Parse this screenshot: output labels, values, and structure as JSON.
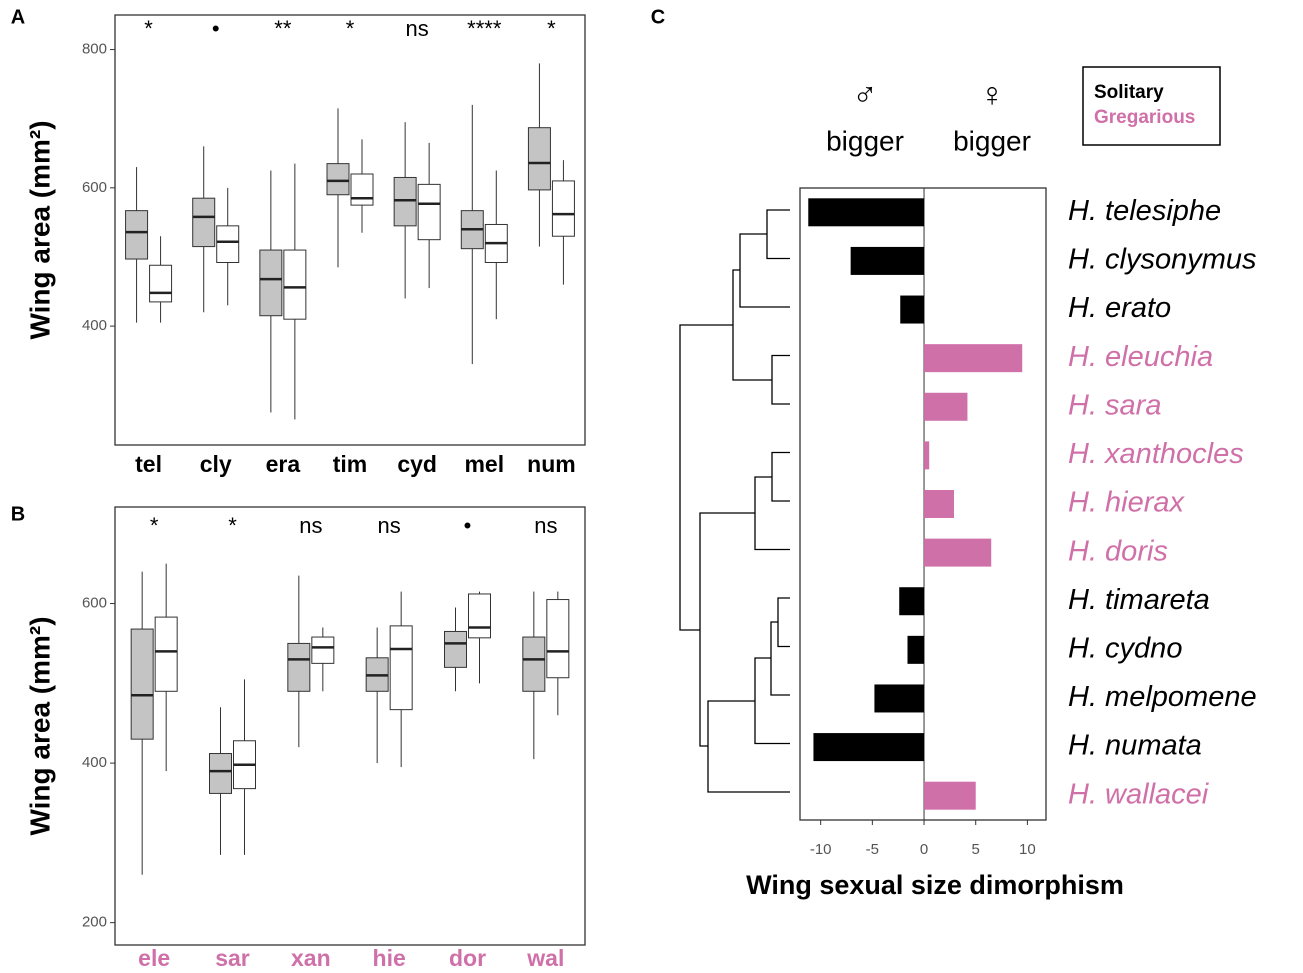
{
  "chart_data": [
    {
      "type": "box",
      "panel": "A",
      "y_label": "Wing area (mm²)",
      "categories": [
        "tel",
        "cly",
        "era",
        "tim",
        "cyd",
        "mel",
        "num"
      ],
      "category_color": "#000000",
      "annotations": [
        "*",
        "•",
        "**",
        "*",
        "ns",
        "****",
        "*"
      ],
      "ylim": [
        228,
        850
      ],
      "yticks": [
        400,
        600,
        800
      ],
      "series": [
        {
          "color": "#c4c4c4",
          "values": [
            {
              "min": 405,
              "q1": 497,
              "median": 536,
              "q3": 567,
              "max": 630
            },
            {
              "min": 420,
              "q1": 515,
              "median": 558,
              "q3": 585,
              "max": 660
            },
            {
              "min": 275,
              "q1": 415,
              "median": 468,
              "q3": 510,
              "max": 625
            },
            {
              "min": 485,
              "q1": 590,
              "median": 610,
              "q3": 635,
              "max": 715
            },
            {
              "min": 440,
              "q1": 545,
              "median": 582,
              "q3": 615,
              "max": 695
            },
            {
              "min": 345,
              "q1": 512,
              "median": 540,
              "q3": 567,
              "max": 720
            },
            {
              "min": 515,
              "q1": 597,
              "median": 636,
              "q3": 687,
              "max": 780
            }
          ]
        },
        {
          "color": "#ffffff",
          "values": [
            {
              "min": 405,
              "q1": 435,
              "median": 448,
              "q3": 488,
              "max": 530
            },
            {
              "min": 430,
              "q1": 492,
              "median": 522,
              "q3": 545,
              "max": 600
            },
            {
              "min": 265,
              "q1": 410,
              "median": 456,
              "q3": 510,
              "max": 635
            },
            {
              "min": 535,
              "q1": 575,
              "median": 585,
              "q3": 620,
              "max": 670
            },
            {
              "min": 455,
              "q1": 525,
              "median": 577,
              "q3": 605,
              "max": 665
            },
            {
              "min": 410,
              "q1": 492,
              "median": 520,
              "q3": 547,
              "max": 625
            },
            {
              "min": 460,
              "q1": 530,
              "median": 562,
              "q3": 610,
              "max": 640
            }
          ]
        }
      ]
    },
    {
      "type": "box",
      "panel": "B",
      "y_label": "Wing area (mm²)",
      "categories": [
        "ele",
        "sar",
        "xan",
        "hie",
        "dor",
        "wal"
      ],
      "category_color": "#d070a8",
      "annotations": [
        "*",
        "*",
        "ns",
        "ns",
        "•",
        "ns"
      ],
      "ylim": [
        172,
        721
      ],
      "yticks": [
        200,
        400,
        600
      ],
      "series": [
        {
          "color": "#c4c4c4",
          "values": [
            {
              "min": 260,
              "q1": 430,
              "median": 485,
              "q3": 568,
              "max": 640
            },
            {
              "min": 285,
              "q1": 362,
              "median": 390,
              "q3": 412,
              "max": 470
            },
            {
              "min": 420,
              "q1": 490,
              "median": 530,
              "q3": 550,
              "max": 635
            },
            {
              "min": 400,
              "q1": 490,
              "median": 510,
              "q3": 532,
              "max": 570
            },
            {
              "min": 490,
              "q1": 520,
              "median": 550,
              "q3": 565,
              "max": 595
            },
            {
              "min": 405,
              "q1": 490,
              "median": 530,
              "q3": 558,
              "max": 615
            }
          ]
        },
        {
          "color": "#ffffff",
          "values": [
            {
              "min": 390,
              "q1": 490,
              "median": 540,
              "q3": 583,
              "max": 650
            },
            {
              "min": 285,
              "q1": 368,
              "median": 398,
              "q3": 428,
              "max": 505
            },
            {
              "min": 490,
              "q1": 525,
              "median": 545,
              "q3": 558,
              "max": 570
            },
            {
              "min": 395,
              "q1": 467,
              "median": 543,
              "q3": 572,
              "max": 615
            },
            {
              "min": 500,
              "q1": 557,
              "median": 570,
              "q3": 612,
              "max": 615
            },
            {
              "min": 460,
              "q1": 507,
              "median": 540,
              "q3": 605,
              "max": 615
            }
          ]
        }
      ]
    },
    {
      "type": "bar",
      "panel": "C",
      "x_label": "Wing sexual size dimorphism",
      "headers": [
        "♂",
        "bigger",
        "♀",
        "bigger"
      ],
      "categories": [
        "H. telesiphe",
        "H. clysonymus",
        "H. erato",
        "H. eleuchia",
        "H. sara",
        "H. xanthocles",
        "H. hierax",
        "H. doris",
        "H. timareta",
        "H. cydno",
        "H. melpomene",
        "H. numata",
        "H. wallacei"
      ],
      "xlim": [
        -12.0,
        11.8
      ],
      "xticks": [
        -10,
        -5,
        0,
        5,
        10
      ],
      "series": [
        {
          "name": "Solitary",
          "color": "#000000",
          "values": [
            -11.2,
            -7.1,
            -2.3,
            null,
            null,
            null,
            null,
            null,
            -2.4,
            -1.6,
            -4.8,
            -10.7,
            null
          ]
        },
        {
          "name": "Gregarious",
          "color": "#d070a8",
          "values": [
            null,
            null,
            null,
            9.5,
            4.2,
            0.5,
            2.9,
            6.5,
            null,
            null,
            null,
            null,
            5.0
          ]
        }
      ]
    }
  ]
}
